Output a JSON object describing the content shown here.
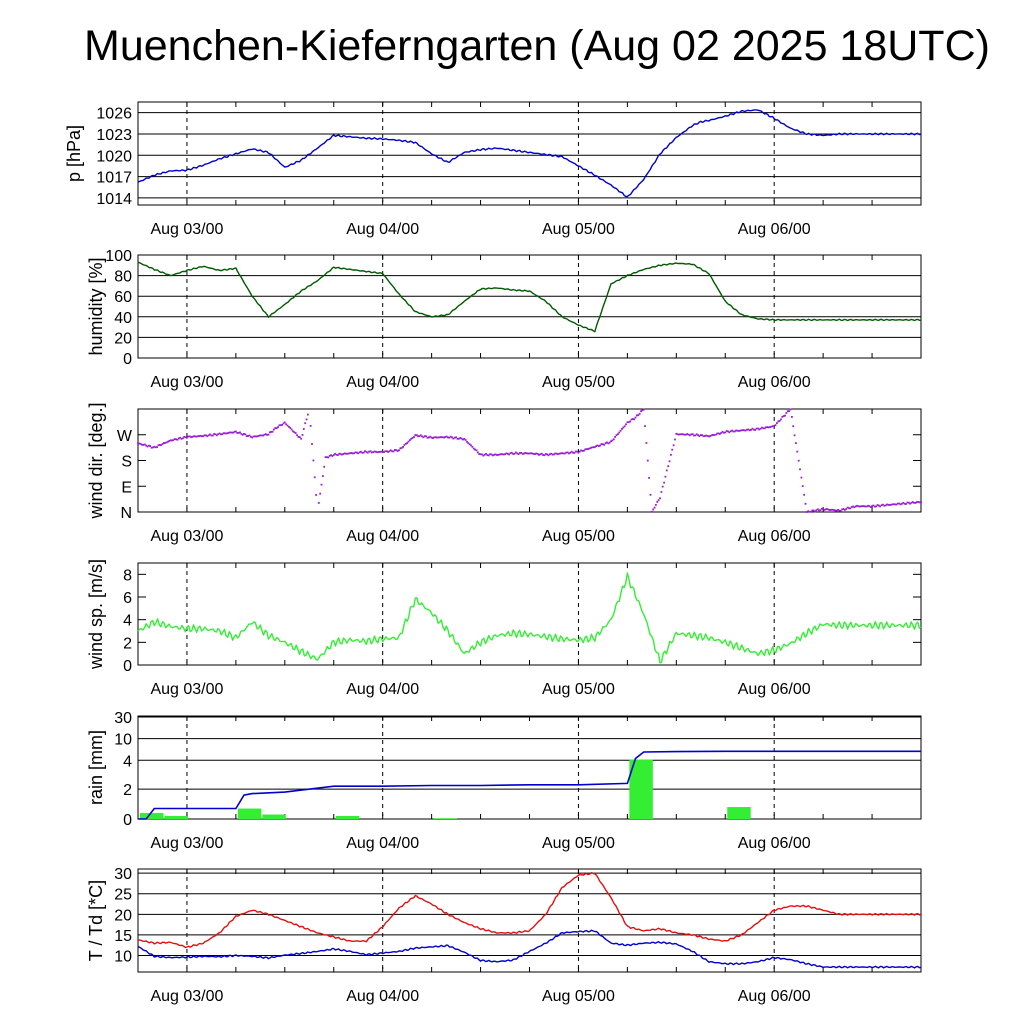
{
  "title": "Muenchen-Kieferngarten (Aug 02 2025 18UTC)",
  "x_tick_labels": [
    "Aug 03/00",
    "Aug 04/00",
    "Aug 05/00",
    "Aug 06/00"
  ],
  "colors": {
    "pressure": "#0000cc",
    "humidity": "#005a00",
    "wind_dir": "#9a1fd6",
    "wind_speed": "#33ee33",
    "rain_bars": "#33ee33",
    "rain_total": "#0000cc",
    "temperature": "#e01010",
    "dewpoint": "#0000cc"
  },
  "chart_data": [
    {
      "type": "line",
      "id": "pressure",
      "ylabel": "p [hPa]",
      "yticks": [
        1014,
        1017,
        1020,
        1023,
        1026
      ],
      "ylim": [
        1013,
        1027.5
      ],
      "grid": "horizontal at ticks",
      "x_hours": [
        0,
        2,
        4,
        6,
        8,
        10,
        12,
        14,
        16,
        18,
        20,
        22,
        24,
        26,
        28,
        30,
        32,
        34,
        36,
        38,
        40,
        42,
        44,
        46,
        48,
        50,
        52,
        54,
        56,
        58,
        60,
        62,
        64,
        66,
        68,
        69,
        70,
        72,
        74,
        76,
        78,
        80,
        82,
        84,
        86,
        88,
        90,
        92,
        94,
        96
      ],
      "series": [
        {
          "values": [
            1016.2,
            1017.2,
            1017.8,
            1017.9,
            1018.6,
            1019.5,
            1020.2,
            1020.9,
            1020.4,
            1018.3,
            1019.3,
            1021.0,
            1022.8,
            1022.6,
            1022.4,
            1022.3,
            1022.1,
            1021.8,
            1020.2,
            1019.0,
            1020.4,
            1020.8,
            1021.0,
            1020.7,
            1020.4,
            1020.1,
            1019.8,
            1018.5,
            1017.2,
            1015.8,
            1014.1,
            1016.6,
            1020.2,
            1022.5,
            1024.2,
            1024.7,
            1024.9,
            1025.5,
            1026.2,
            1026.4,
            1025.2,
            1023.8,
            1023.0,
            1022.8,
            1023.0,
            1023.0,
            1023.0,
            1023.0,
            1023.0,
            1023.0
          ]
        }
      ]
    },
    {
      "type": "line",
      "id": "humidity",
      "ylabel": "humidity [%]",
      "yticks": [
        0,
        20,
        40,
        60,
        80,
        100
      ],
      "ylim": [
        0,
        100
      ],
      "grid": "horizontal at ticks",
      "x_hours": [
        0,
        2,
        4,
        6,
        8,
        10,
        12,
        14,
        16,
        18,
        20,
        22,
        24,
        26,
        28,
        30,
        32,
        34,
        36,
        38,
        40,
        42,
        44,
        46,
        48,
        50,
        52,
        54,
        56,
        58,
        60,
        62,
        64,
        66,
        68,
        70,
        72,
        74,
        76,
        78,
        80,
        82,
        84,
        86,
        88,
        90,
        92,
        94,
        96
      ],
      "series": [
        {
          "values": [
            93,
            86,
            80,
            85,
            89,
            85,
            87,
            60,
            40,
            52,
            65,
            75,
            88,
            86,
            84,
            82,
            62,
            45,
            40,
            42,
            55,
            67,
            68,
            66,
            65,
            55,
            40,
            32,
            26,
            72,
            80,
            86,
            90,
            92,
            91,
            82,
            55,
            42,
            38,
            37,
            37,
            37,
            37,
            37,
            37,
            37,
            37,
            37,
            37
          ]
        }
      ]
    },
    {
      "type": "scatter",
      "id": "wind_dir",
      "ylabel": "wind dir. [deg.]",
      "yticks": [
        "N",
        "E",
        "S",
        "W"
      ],
      "ylim": [
        0,
        360
      ],
      "grid": "none (ticks only)",
      "x_hours": [
        0,
        2,
        4,
        6,
        8,
        10,
        12,
        14,
        16,
        17,
        18,
        20,
        21,
        22,
        23,
        24,
        26,
        28,
        30,
        32,
        34,
        36,
        38,
        40,
        42,
        44,
        46,
        48,
        50,
        52,
        54,
        56,
        58,
        60,
        61,
        62,
        63,
        64,
        66,
        68,
        70,
        72,
        74,
        76,
        78,
        80,
        82,
        84,
        86,
        88,
        90,
        92,
        94,
        96
      ],
      "series": [
        {
          "values": [
            240,
            225,
            250,
            262,
            266,
            272,
            280,
            262,
            272,
            295,
            312,
            255,
            360,
            0,
            190,
            200,
            205,
            210,
            210,
            216,
            268,
            260,
            262,
            255,
            200,
            200,
            205,
            205,
            200,
            205,
            210,
            228,
            245,
            312,
            330,
            360,
            0,
            50,
            272,
            270,
            265,
            280,
            285,
            290,
            300,
            360,
            0,
            10,
            5,
            20,
            20,
            25,
            30,
            35
          ]
        }
      ]
    },
    {
      "type": "line",
      "id": "wind_speed",
      "ylabel": "wind sp. [m/s]",
      "yticks": [
        0.0,
        2.0,
        4.0,
        6.0,
        8.0
      ],
      "ylim": [
        0,
        9
      ],
      "grid": "none (ticks only)",
      "x_hours": [
        0,
        2,
        4,
        6,
        8,
        10,
        12,
        14,
        16,
        18,
        20,
        22,
        24,
        26,
        28,
        30,
        32,
        34,
        36,
        38,
        40,
        42,
        44,
        46,
        48,
        50,
        52,
        54,
        56,
        58,
        60,
        62,
        64,
        66,
        68,
        70,
        72,
        74,
        76,
        78,
        80,
        82,
        84,
        86,
        88,
        90,
        92,
        94,
        96
      ],
      "series": [
        {
          "values": [
            3.0,
            3.8,
            3.4,
            3.2,
            3.2,
            3.0,
            2.4,
            3.8,
            2.6,
            2.0,
            1.2,
            0.5,
            2.0,
            2.2,
            2.1,
            2.3,
            2.4,
            5.8,
            4.6,
            3.0,
            1.0,
            2.0,
            2.6,
            2.8,
            2.7,
            2.5,
            2.3,
            2.2,
            2.4,
            4.0,
            7.8,
            4.5,
            0.3,
            2.8,
            2.6,
            2.4,
            2.0,
            1.5,
            1.0,
            1.3,
            1.9,
            2.8,
            3.6,
            3.5,
            3.5,
            3.5,
            3.5,
            3.5,
            3.5
          ]
        }
      ]
    },
    {
      "type": "bar+line",
      "id": "rain",
      "ylabel": "rain [mm]",
      "yticks": [
        0,
        2,
        4,
        10,
        30
      ],
      "bars": {
        "x_hours": [
          0,
          3,
          12,
          15,
          24,
          36,
          48,
          60,
          72
        ],
        "values": [
          0.4,
          0.2,
          0.7,
          0.3,
          0.2,
          0.05,
          0,
          4.2,
          0.8
        ]
      },
      "cumulative": {
        "x_hours": [
          0,
          1,
          2,
          12,
          13,
          14,
          18,
          24,
          30,
          36,
          42,
          48,
          54,
          60,
          61,
          62,
          66,
          72,
          78,
          84,
          90,
          96
        ],
        "values": [
          0,
          0,
          0.7,
          0.7,
          1.6,
          1.7,
          1.8,
          2.2,
          2.2,
          2.25,
          2.25,
          2.3,
          2.3,
          2.4,
          4.5,
          6.3,
          6.4,
          6.5,
          6.5,
          6.5,
          6.5,
          6.5
        ]
      },
      "grid": "horizontal at ticks"
    },
    {
      "type": "line",
      "id": "temperature",
      "ylabel": "T / Td [*C]",
      "yticks": [
        10,
        15,
        20,
        25,
        30
      ],
      "ylim": [
        6,
        31
      ],
      "grid": "horizontal at ticks",
      "x_hours": [
        0,
        2,
        4,
        6,
        8,
        10,
        12,
        14,
        16,
        18,
        20,
        22,
        24,
        26,
        28,
        30,
        32,
        34,
        36,
        38,
        40,
        42,
        44,
        46,
        48,
        50,
        52,
        54,
        56,
        58,
        60,
        62,
        64,
        66,
        68,
        70,
        72,
        74,
        76,
        78,
        80,
        82,
        84,
        86,
        88,
        90,
        92,
        94,
        96
      ],
      "series": [
        {
          "name": "T",
          "values": [
            13.8,
            13.0,
            13.2,
            12.0,
            13.0,
            15.5,
            19.5,
            21.0,
            20.0,
            18.5,
            17.0,
            15.5,
            14.5,
            13.5,
            13.5,
            17.0,
            21.5,
            24.5,
            22.5,
            20.0,
            18.0,
            16.5,
            15.5,
            15.5,
            16.0,
            20.0,
            26.5,
            29.5,
            30.0,
            24.0,
            17.0,
            16.0,
            16.5,
            15.5,
            15.0,
            14.0,
            13.5,
            15.0,
            18.0,
            21.0,
            22.0,
            22.0,
            21.0,
            20.0,
            20.0,
            20.0,
            20.0,
            20.0,
            20.0
          ]
        },
        {
          "name": "Td",
          "values": [
            12.2,
            9.8,
            9.5,
            9.6,
            9.8,
            9.7,
            10.0,
            9.8,
            9.4,
            10.1,
            10.5,
            11.0,
            11.6,
            11.0,
            10.2,
            10.6,
            11.0,
            11.8,
            12.1,
            12.4,
            10.8,
            8.8,
            8.5,
            8.9,
            11.0,
            13.0,
            15.5,
            15.8,
            16.0,
            13.0,
            12.5,
            13.0,
            13.2,
            12.8,
            11.0,
            8.5,
            8.0,
            8.0,
            8.5,
            9.5,
            9.0,
            8.0,
            7.2,
            7.2,
            7.2,
            7.2,
            7.2,
            7.2,
            7.2
          ]
        }
      ]
    }
  ]
}
